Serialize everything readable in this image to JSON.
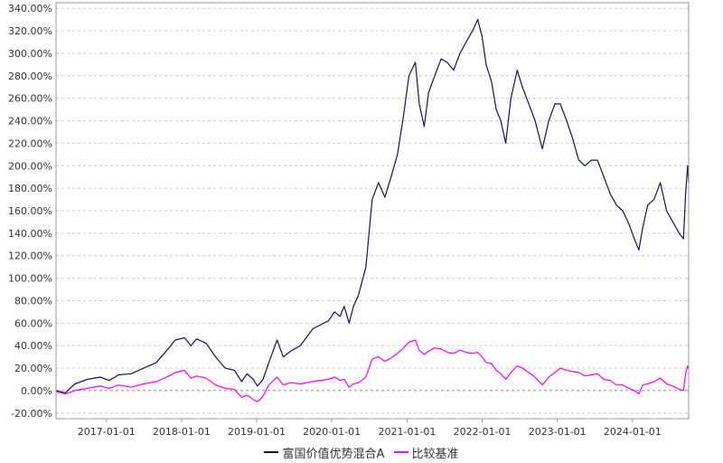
{
  "chart_data": {
    "type": "line",
    "title": "",
    "xlabel": "",
    "ylabel": "",
    "x_range": [
      "2016-05-01",
      "2024-09-30"
    ],
    "ylim": [
      -25,
      345
    ],
    "y_ticks": [
      -20,
      0,
      20,
      40,
      60,
      80,
      100,
      120,
      140,
      160,
      180,
      200,
      220,
      240,
      260,
      280,
      300,
      320,
      340
    ],
    "y_tick_labels": [
      "-20.00%",
      "0.00%",
      "20.00%",
      "40.00%",
      "60.00%",
      "80.00%",
      "100.00%",
      "120.00%",
      "140.00%",
      "160.00%",
      "180.00%",
      "200.00%",
      "220.00%",
      "240.00%",
      "260.00%",
      "280.00%",
      "300.00%",
      "320.00%",
      "340.00%"
    ],
    "x_ticks": [
      "2017-01-01",
      "2018-01-01",
      "2019-01-01",
      "2020-01-01",
      "2021-01-01",
      "2022-01-01",
      "2023-01-01",
      "2024-01-01"
    ],
    "x_tick_labels": [
      "2017-01-01",
      "2018-01-01",
      "2019-01-01",
      "2020-01-01",
      "2021-01-01",
      "2022-01-01",
      "2023-01-01",
      "2024-01-01"
    ],
    "grid": true,
    "legend_position": "bottom",
    "series": [
      {
        "name": "富国价值优势混合A",
        "color": "#14145a",
        "points": [
          [
            "2016-05-01",
            0
          ],
          [
            "2016-06-15",
            -2
          ],
          [
            "2016-08-01",
            6
          ],
          [
            "2016-10-01",
            10
          ],
          [
            "2016-12-01",
            12
          ],
          [
            "2017-01-15",
            9
          ],
          [
            "2017-03-01",
            14
          ],
          [
            "2017-05-01",
            15
          ],
          [
            "2017-07-01",
            20
          ],
          [
            "2017-09-01",
            25
          ],
          [
            "2017-11-01",
            38
          ],
          [
            "2017-12-01",
            45
          ],
          [
            "2018-01-15",
            47
          ],
          [
            "2018-02-15",
            40
          ],
          [
            "2018-03-15",
            46
          ],
          [
            "2018-05-01",
            42
          ],
          [
            "2018-06-15",
            30
          ],
          [
            "2018-08-01",
            20
          ],
          [
            "2018-09-15",
            18
          ],
          [
            "2018-10-20",
            8
          ],
          [
            "2018-11-15",
            15
          ],
          [
            "2018-12-15",
            10
          ],
          [
            "2019-01-05",
            4
          ],
          [
            "2019-02-01",
            10
          ],
          [
            "2019-03-01",
            25
          ],
          [
            "2019-04-10",
            45
          ],
          [
            "2019-05-10",
            30
          ],
          [
            "2019-06-15",
            35
          ],
          [
            "2019-08-01",
            40
          ],
          [
            "2019-10-01",
            55
          ],
          [
            "2019-12-15",
            62
          ],
          [
            "2020-01-15",
            70
          ],
          [
            "2020-02-10",
            66
          ],
          [
            "2020-03-01",
            75
          ],
          [
            "2020-03-25",
            60
          ],
          [
            "2020-04-15",
            75
          ],
          [
            "2020-05-10",
            85
          ],
          [
            "2020-06-15",
            110
          ],
          [
            "2020-07-15",
            170
          ],
          [
            "2020-08-15",
            185
          ],
          [
            "2020-09-15",
            172
          ],
          [
            "2020-10-15",
            190
          ],
          [
            "2020-11-15",
            210
          ],
          [
            "2020-12-15",
            245
          ],
          [
            "2021-01-10",
            280
          ],
          [
            "2021-02-10",
            292
          ],
          [
            "2021-03-01",
            255
          ],
          [
            "2021-03-25",
            235
          ],
          [
            "2021-04-15",
            265
          ],
          [
            "2021-05-15",
            280
          ],
          [
            "2021-06-15",
            295
          ],
          [
            "2021-07-15",
            292
          ],
          [
            "2021-08-15",
            285
          ],
          [
            "2021-09-15",
            300
          ],
          [
            "2021-10-15",
            310
          ],
          [
            "2021-11-15",
            320
          ],
          [
            "2021-12-10",
            330
          ],
          [
            "2021-12-31",
            315
          ],
          [
            "2022-01-20",
            290
          ],
          [
            "2022-02-15",
            275
          ],
          [
            "2022-03-10",
            250
          ],
          [
            "2022-04-01",
            240
          ],
          [
            "2022-04-25",
            220
          ],
          [
            "2022-05-20",
            260
          ],
          [
            "2022-06-20",
            285
          ],
          [
            "2022-07-15",
            270
          ],
          [
            "2022-08-15",
            255
          ],
          [
            "2022-09-15",
            240
          ],
          [
            "2022-10-20",
            215
          ],
          [
            "2022-11-20",
            240
          ],
          [
            "2022-12-20",
            255
          ],
          [
            "2023-01-15",
            255
          ],
          [
            "2023-02-15",
            240
          ],
          [
            "2023-03-15",
            225
          ],
          [
            "2023-04-15",
            205
          ],
          [
            "2023-05-15",
            200
          ],
          [
            "2023-06-15",
            205
          ],
          [
            "2023-07-15",
            205
          ],
          [
            "2023-08-15",
            190
          ],
          [
            "2023-09-15",
            175
          ],
          [
            "2023-10-15",
            165
          ],
          [
            "2023-11-15",
            160
          ],
          [
            "2023-12-15",
            148
          ],
          [
            "2024-01-10",
            135
          ],
          [
            "2024-02-01",
            125
          ],
          [
            "2024-02-20",
            145
          ],
          [
            "2024-03-15",
            165
          ],
          [
            "2024-04-15",
            170
          ],
          [
            "2024-05-15",
            185
          ],
          [
            "2024-06-15",
            160
          ],
          [
            "2024-07-15",
            150
          ],
          [
            "2024-08-15",
            140
          ],
          [
            "2024-09-05",
            135
          ],
          [
            "2024-09-15",
            175
          ],
          [
            "2024-09-25",
            200
          ],
          [
            "2024-09-30",
            185
          ]
        ]
      },
      {
        "name": "比较基准",
        "color": "#ff00ff",
        "points": [
          [
            "2016-05-01",
            -1
          ],
          [
            "2016-06-15",
            -3
          ],
          [
            "2016-08-01",
            0
          ],
          [
            "2016-10-01",
            2
          ],
          [
            "2016-12-01",
            4
          ],
          [
            "2017-01-15",
            2
          ],
          [
            "2017-03-01",
            5
          ],
          [
            "2017-05-01",
            3
          ],
          [
            "2017-07-01",
            6
          ],
          [
            "2017-09-01",
            8
          ],
          [
            "2017-11-01",
            13
          ],
          [
            "2017-12-01",
            16
          ],
          [
            "2018-01-15",
            18
          ],
          [
            "2018-02-15",
            11
          ],
          [
            "2018-03-15",
            13
          ],
          [
            "2018-05-01",
            11
          ],
          [
            "2018-06-15",
            5
          ],
          [
            "2018-08-01",
            2
          ],
          [
            "2018-09-15",
            1
          ],
          [
            "2018-10-20",
            -6
          ],
          [
            "2018-11-15",
            -4
          ],
          [
            "2018-12-15",
            -8
          ],
          [
            "2019-01-05",
            -10
          ],
          [
            "2019-02-01",
            -5
          ],
          [
            "2019-03-01",
            5
          ],
          [
            "2019-04-10",
            12
          ],
          [
            "2019-05-10",
            5
          ],
          [
            "2019-06-15",
            7
          ],
          [
            "2019-08-01",
            6
          ],
          [
            "2019-10-01",
            8
          ],
          [
            "2019-12-15",
            10
          ],
          [
            "2020-01-15",
            12
          ],
          [
            "2020-02-10",
            9
          ],
          [
            "2020-03-01",
            10
          ],
          [
            "2020-03-25",
            3
          ],
          [
            "2020-04-15",
            6
          ],
          [
            "2020-05-10",
            7
          ],
          [
            "2020-06-15",
            12
          ],
          [
            "2020-07-15",
            28
          ],
          [
            "2020-08-15",
            30
          ],
          [
            "2020-09-15",
            26
          ],
          [
            "2020-10-15",
            29
          ],
          [
            "2020-11-15",
            33
          ],
          [
            "2020-12-15",
            38
          ],
          [
            "2021-01-10",
            43
          ],
          [
            "2021-02-10",
            45
          ],
          [
            "2021-03-01",
            36
          ],
          [
            "2021-03-25",
            32
          ],
          [
            "2021-04-15",
            35
          ],
          [
            "2021-05-15",
            38
          ],
          [
            "2021-06-15",
            37
          ],
          [
            "2021-07-15",
            34
          ],
          [
            "2021-08-15",
            33
          ],
          [
            "2021-09-15",
            36
          ],
          [
            "2021-10-15",
            34
          ],
          [
            "2021-11-15",
            33
          ],
          [
            "2021-12-10",
            34
          ],
          [
            "2021-12-31",
            30
          ],
          [
            "2022-01-20",
            25
          ],
          [
            "2022-02-15",
            24
          ],
          [
            "2022-03-10",
            18
          ],
          [
            "2022-04-01",
            15
          ],
          [
            "2022-04-25",
            10
          ],
          [
            "2022-05-20",
            16
          ],
          [
            "2022-06-20",
            22
          ],
          [
            "2022-07-15",
            20
          ],
          [
            "2022-08-15",
            16
          ],
          [
            "2022-09-15",
            12
          ],
          [
            "2022-10-20",
            5
          ],
          [
            "2022-11-20",
            12
          ],
          [
            "2022-12-20",
            16
          ],
          [
            "2023-01-15",
            20
          ],
          [
            "2023-02-15",
            18
          ],
          [
            "2023-03-15",
            17
          ],
          [
            "2023-04-15",
            16
          ],
          [
            "2023-05-15",
            13
          ],
          [
            "2023-06-15",
            14
          ],
          [
            "2023-07-15",
            15
          ],
          [
            "2023-08-15",
            10
          ],
          [
            "2023-09-15",
            9
          ],
          [
            "2023-10-15",
            5
          ],
          [
            "2023-11-15",
            5
          ],
          [
            "2023-12-15",
            2
          ],
          [
            "2024-01-10",
            0
          ],
          [
            "2024-02-01",
            -3
          ],
          [
            "2024-02-20",
            5
          ],
          [
            "2024-03-15",
            6
          ],
          [
            "2024-04-15",
            8
          ],
          [
            "2024-05-15",
            11
          ],
          [
            "2024-06-15",
            6
          ],
          [
            "2024-07-15",
            4
          ],
          [
            "2024-08-15",
            1
          ],
          [
            "2024-09-05",
            0
          ],
          [
            "2024-09-15",
            15
          ],
          [
            "2024-09-25",
            22
          ],
          [
            "2024-09-30",
            19
          ]
        ]
      }
    ]
  },
  "legend": {
    "items": [
      {
        "label": "富国价值优势混合A",
        "color": "#14145a"
      },
      {
        "label": "比较基准",
        "color": "#ff00ff"
      }
    ]
  }
}
